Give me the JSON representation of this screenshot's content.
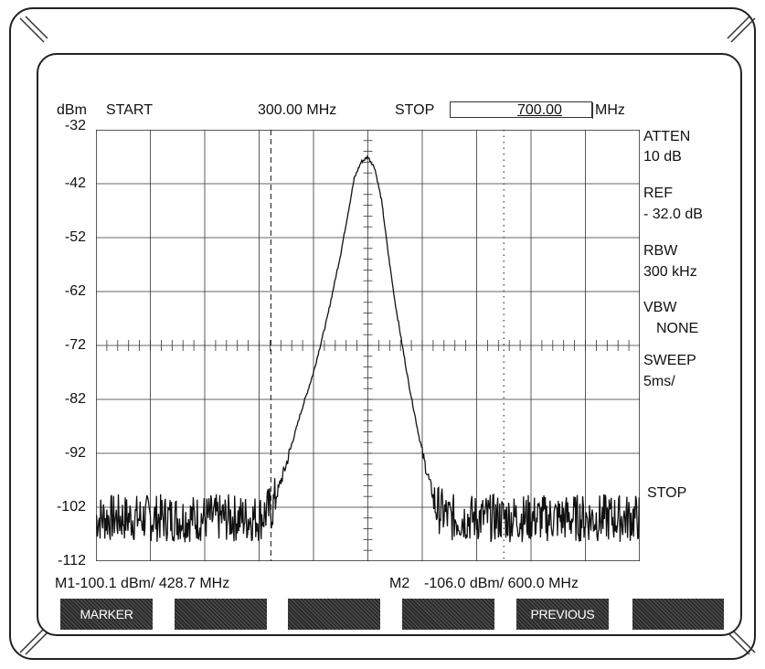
{
  "header": {
    "unit": "dBm",
    "start_label": "START",
    "start_value": "300.00 MHz",
    "stop_label": "STOP",
    "stop_value": "700.00",
    "stop_unit": "MHz"
  },
  "right_panel": {
    "atten_label": "ATTEN",
    "atten_value": "10 dB",
    "ref_label": "REF",
    "ref_value": "- 32.0  dB",
    "rbw_label": "RBW",
    "rbw_value": "300  kHz",
    "vbw_label": "VBW",
    "vbw_value": "NONE",
    "sweep_label": "SWEEP",
    "sweep_value": "5ms/",
    "stop_status": "STOP"
  },
  "markers": {
    "m1_text": "M1-100.1 dBm/  428.7 MHz",
    "m2_label": "M2",
    "m2_text": "-106.0 dBm/  600.0 MHz"
  },
  "softkeys": [
    "MARKER",
    "",
    "",
    "",
    "PREVIOUS",
    ""
  ],
  "chart_data": {
    "type": "line",
    "title": "",
    "xlabel": "",
    "ylabel": "dBm",
    "xlim": [
      300.0,
      700.0
    ],
    "ylim": [
      -112,
      -32
    ],
    "y_ticks": [
      -32,
      -42,
      -52,
      -62,
      -72,
      -82,
      -92,
      -102,
      -112
    ],
    "grid": true,
    "markers": [
      {
        "name": "M1",
        "x": 428.7,
        "y": -100.1,
        "style": "dashed"
      },
      {
        "name": "M2",
        "x": 600.0,
        "y": -106.0,
        "style": "dotted"
      }
    ],
    "series": [
      {
        "x": [
          300,
          320,
          340,
          360,
          380,
          400,
          420,
          430,
          440,
          450,
          460,
          470,
          480,
          485,
          490,
          495,
          500,
          505,
          510,
          515,
          520,
          530,
          540,
          550,
          560,
          570,
          580,
          600,
          620,
          640,
          660,
          680,
          700
        ],
        "values": [
          -104,
          -104,
          -104,
          -104,
          -104,
          -104,
          -104,
          -102,
          -94,
          -85,
          -77,
          -67,
          -55,
          -48,
          -41,
          -38,
          -37,
          -39,
          -45,
          -55,
          -64,
          -79,
          -92,
          -102,
          -104,
          -104,
          -104,
          -104,
          -104,
          -104,
          -104,
          -104,
          -104
        ]
      }
    ]
  }
}
